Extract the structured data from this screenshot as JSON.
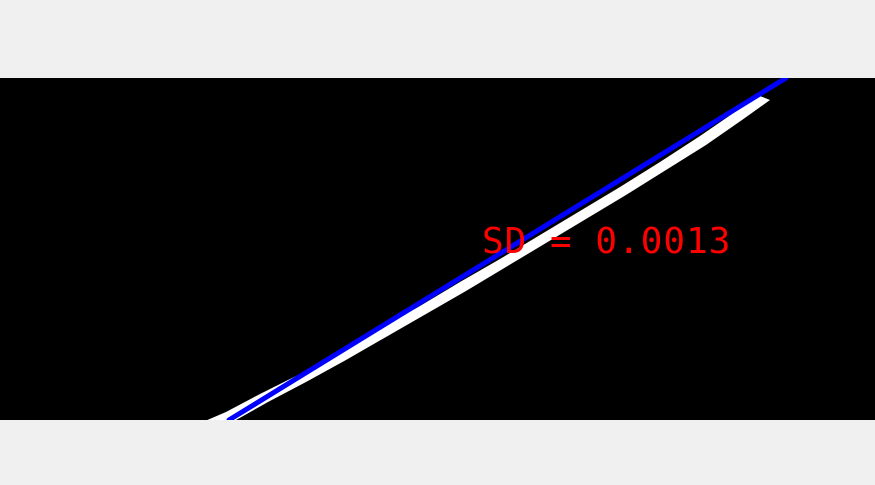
{
  "overlay": {
    "sd_text": "SD  =  0.0013"
  },
  "colors": {
    "background": "#000000",
    "edge": "#ffffff",
    "fit_line": "#0000ff",
    "text": "#ff0000",
    "frame": "#f0f0f0"
  }
}
